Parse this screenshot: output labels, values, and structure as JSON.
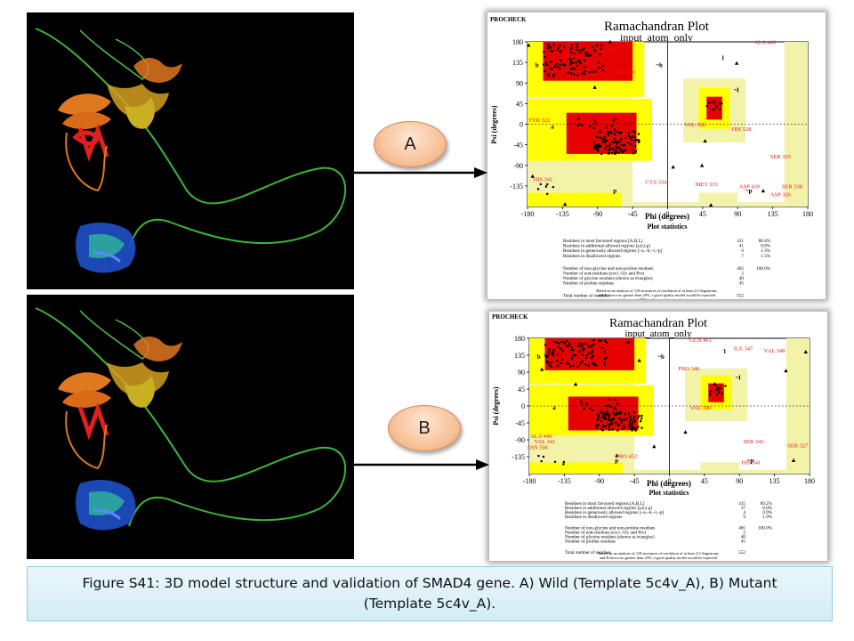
{
  "panels": [
    {
      "id": "A",
      "label": "A",
      "plot": {
        "header": "PROCHECK",
        "title": "Ramachandran Plot",
        "subtitle": "input_atom_only",
        "xlabel": "Phi (degrees)",
        "ylabel": "Psi (degrees)",
        "x_ticks": [
          "-180",
          "-135",
          "-90",
          "-45",
          "0",
          "45",
          "90",
          "135",
          "180"
        ],
        "y_ticks": [
          "180",
          "135",
          "90",
          "45",
          "0",
          "-45",
          "-90",
          "-135"
        ],
        "region_labels": [
          "B",
          "b",
          "l",
          "A",
          "a",
          "L",
          "~b",
          "~l",
          "p",
          "~p"
        ],
        "residue_labels": [
          "LEU 329",
          "TYR 260",
          "TYR 322",
          "VAL 306",
          "HIS 528",
          "SER 325",
          "HIS 341",
          "CYS 334",
          "MET 333",
          "ASP 439",
          "SER 338",
          "ASP 326",
          "ALA 449"
        ],
        "stats_title": "Plot statistics",
        "stats": [
          {
            "label": "Residues in most favoured regions [A,B,L]",
            "n": "411",
            "pct": "88.4%"
          },
          {
            "label": "Residues in additional allowed regions [a,b,l,p]",
            "n": "41",
            "pct": "8.8%"
          },
          {
            "label": "Residues in generously allowed regions [~a,~b,~l,~p]",
            "n": "6",
            "pct": "1.3%"
          },
          {
            "label": "Residues in disallowed regions",
            "n": "7",
            "pct": "1.5%"
          },
          {
            "label": "Number of non-glycine and non-proline residues",
            "n": "465",
            "pct": "100.0%"
          },
          {
            "label": "Number of end-residues (excl. Gly and Pro)",
            "n": "2",
            "pct": ""
          },
          {
            "label": "Number of glycine residues (shown as triangles)",
            "n": "40",
            "pct": ""
          },
          {
            "label": "Number of proline residues",
            "n": "45",
            "pct": ""
          },
          {
            "label": "Total number of residues",
            "n": "552",
            "pct": ""
          }
        ],
        "footnote": [
          "Based on an analysis of 118 structures of resolution of at least 2.0 Angstroms",
          "and R-factor no greater than 20%, a good quality model would be expected",
          "to have over 90% in the most favoured regions."
        ]
      }
    },
    {
      "id": "B",
      "label": "B",
      "plot": {
        "header": "PROCHECK",
        "title": "Ramachandran Plot",
        "subtitle": "input_atom_only",
        "xlabel": "Phi (degrees)",
        "ylabel": "Psi (degrees)",
        "x_ticks": [
          "-180",
          "-135",
          "-90",
          "-45",
          "0",
          "45",
          "90",
          "135",
          "180"
        ],
        "y_ticks": [
          "180",
          "135",
          "90",
          "45",
          "0",
          "-45",
          "-90",
          "-135"
        ],
        "region_labels": [
          "B",
          "b",
          "l",
          "A",
          "a",
          "L",
          "~b",
          "~l",
          "p",
          "~p"
        ],
        "residue_labels": [
          "GLN 461",
          "ILE 347",
          "VAL 348",
          "PRO 346",
          "VAL 390",
          "ALA 449",
          "VAL 341",
          "ASN 506",
          "PRO 452",
          "SER 343",
          "SER 327",
          "HIS 541"
        ],
        "stats_title": "Plot statistics",
        "stats": [
          {
            "label": "Residues in most favoured regions [A,B,L]",
            "n": "415",
            "pct": "89.2%"
          },
          {
            "label": "Residues in additional allowed regions [a,b,l,p]",
            "n": "37",
            "pct": "8.0%"
          },
          {
            "label": "Residues in generously allowed regions [~a,~b,~l,~p]",
            "n": "4",
            "pct": "0.9%"
          },
          {
            "label": "Residues in disallowed regions",
            "n": "9",
            "pct": "1.9%"
          },
          {
            "label": "Number of non-glycine and non-proline residues",
            "n": "465",
            "pct": "100.0%"
          },
          {
            "label": "Number of end-residues (excl. Gly and Pro)",
            "n": "2",
            "pct": ""
          },
          {
            "label": "Number of glycine residues (shown as triangles)",
            "n": "40",
            "pct": ""
          },
          {
            "label": "Number of proline residues",
            "n": "45",
            "pct": ""
          },
          {
            "label": "Total number of residues",
            "n": "552",
            "pct": ""
          }
        ],
        "footnote": [
          "Based on an analysis of 118 structures of resolution of at least 2.0 Angstroms",
          "and R-factor no greater than 20%, a good quality model would be expected",
          "to have over 90% in the most favoured regions."
        ]
      }
    }
  ],
  "caption": {
    "line1": "Figure S41: 3D model structure and validation of SMAD4 gene. A) Wild (Template 5c4v_A), B) Mutant",
    "line2": "(Template 5c4v_A)."
  },
  "colors": {
    "favoured": "#e60000",
    "allowed": "#ffff00",
    "generous": "#f2f2a8",
    "disallowed": "#ffffff",
    "helix_red": "#e02020",
    "strand_orange": "#e07820",
    "coil_green": "#3cb43c",
    "domain_blue": "#1e50c8",
    "oval": "#f7c39a",
    "caption_bg": "#dbf0f8"
  }
}
